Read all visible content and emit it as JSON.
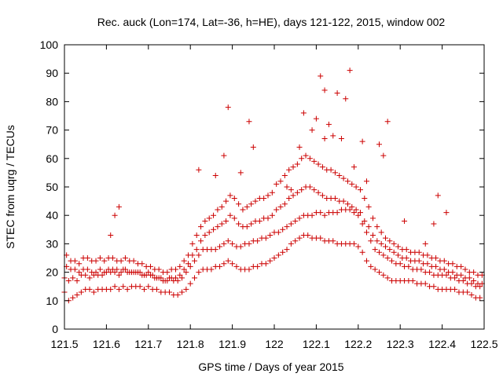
{
  "chart_data": {
    "type": "scatter",
    "title": "Rec. auck (Lon=174, Lat=-36, h=HE), days 121-122, 2015, window 002",
    "xlabel": "GPS time / Days of year 2015",
    "ylabel": "STEC from uqrg / TECUs",
    "xlim": [
      121.5,
      122.5
    ],
    "ylim": [
      0,
      100
    ],
    "xticks": [
      121.5,
      121.6,
      121.7,
      121.8,
      121.9,
      122,
      122.1,
      122.2,
      122.3,
      122.4,
      122.5
    ],
    "xtick_labels": [
      "121.5",
      "121.6",
      "121.7",
      "121.8",
      "121.9",
      "122",
      "122.1",
      "122.2",
      "122.3",
      "122.4",
      "122.5"
    ],
    "yticks": [
      0,
      10,
      20,
      30,
      40,
      50,
      60,
      70,
      80,
      90,
      100
    ],
    "ytick_labels": [
      "0",
      "10",
      "20",
      "30",
      "40",
      "50",
      "60",
      "70",
      "80",
      "90",
      "100"
    ],
    "grid": false,
    "marker": "plus",
    "color": "#cc0000",
    "series": [
      {
        "x": [
          121.5,
          121.51,
          121.52,
          121.53,
          121.54,
          121.55,
          121.56,
          121.57,
          121.58,
          121.59,
          121.6,
          121.61,
          121.62,
          121.63,
          121.64,
          121.65,
          121.66,
          121.67,
          121.68,
          121.69,
          121.7,
          121.71,
          121.72,
          121.73,
          121.74,
          121.75,
          121.76,
          121.77,
          121.78,
          121.79,
          121.8,
          121.81,
          121.82,
          121.83,
          121.84,
          121.85,
          121.86,
          121.87,
          121.88,
          121.89,
          121.9,
          121.91,
          121.92,
          121.93,
          121.94,
          121.95,
          121.96,
          121.97,
          121.98,
          121.99,
          122.0,
          122.01,
          122.02,
          122.03,
          122.04,
          122.05,
          122.06,
          122.07,
          122.08,
          122.09,
          122.1,
          122.11,
          122.12,
          122.13,
          122.14,
          122.15,
          122.16,
          122.17,
          122.18,
          122.19,
          122.2,
          122.21,
          122.22,
          122.23,
          122.24,
          122.25,
          122.26,
          122.27,
          122.28,
          122.29,
          122.3,
          122.31,
          122.32,
          122.33,
          122.34,
          122.35,
          122.36,
          122.37,
          122.38,
          122.39,
          122.4,
          122.41,
          122.42,
          122.43,
          122.44,
          122.45,
          122.46,
          122.47,
          122.48,
          122.49,
          121.5,
          121.51,
          121.52,
          121.53,
          121.54,
          121.55,
          121.56,
          121.57,
          121.58,
          121.59,
          121.6,
          121.61,
          121.62,
          121.63,
          121.64,
          121.65,
          121.66,
          121.67,
          121.68,
          121.69,
          121.7,
          121.71,
          121.72,
          121.73,
          121.74,
          121.75,
          121.76,
          121.77,
          121.78,
          121.79,
          121.8,
          121.81,
          121.82,
          121.83,
          121.84,
          121.85,
          121.86,
          121.87,
          121.88,
          121.89,
          121.9,
          121.91,
          121.92,
          121.93,
          121.94,
          121.95,
          121.96,
          121.97,
          121.98,
          121.99,
          122.0,
          122.01,
          122.02,
          122.03,
          122.04,
          122.05,
          122.06,
          122.07,
          122.08,
          122.09,
          122.1,
          122.11,
          122.12,
          122.13,
          122.14,
          122.15,
          122.16,
          122.17,
          122.18,
          122.19,
          122.2,
          122.21,
          122.22,
          122.23,
          122.24,
          122.25,
          122.26,
          122.27,
          122.28,
          122.29,
          122.3,
          122.31,
          122.32,
          122.33,
          122.34,
          122.35,
          122.36,
          122.37,
          122.38,
          122.39,
          122.4,
          122.41,
          122.42,
          122.43,
          122.44,
          122.45,
          122.46,
          122.47,
          122.48,
          122.49,
          121.505,
          121.515,
          121.525,
          121.535,
          121.545,
          121.555,
          121.565,
          121.575,
          121.585,
          121.595,
          121.605,
          121.615,
          121.625,
          121.635,
          121.645,
          121.655,
          121.665,
          121.675,
          121.685,
          121.695,
          121.705,
          121.715,
          121.725,
          121.735,
          121.745,
          121.755,
          121.765,
          121.775,
          121.785,
          121.795,
          121.805,
          121.815,
          121.825,
          121.835,
          121.845,
          121.855,
          121.865,
          121.875,
          121.885,
          121.895,
          121.905,
          121.915,
          121.925,
          121.935,
          121.945,
          121.955,
          121.965,
          121.975,
          121.985,
          121.995,
          122.005,
          122.015,
          122.025,
          122.035,
          122.045,
          122.055,
          122.065,
          122.075,
          122.085,
          122.095,
          122.105,
          122.115,
          122.125,
          122.135,
          122.145,
          122.155,
          122.165,
          122.175,
          122.185,
          122.195,
          122.205,
          122.215,
          122.225,
          122.235,
          122.245,
          122.255,
          122.265,
          122.275,
          122.285,
          122.295,
          122.305,
          122.315,
          122.325,
          122.335,
          122.345,
          122.355,
          122.365,
          122.375,
          122.385,
          122.395,
          122.405,
          122.415,
          122.425,
          122.435,
          122.445,
          122.455,
          122.465,
          122.475,
          122.485,
          122.495,
          121.505,
          121.515,
          121.525,
          121.535,
          121.545,
          121.555,
          121.565,
          121.575,
          121.585,
          121.595,
          121.605,
          121.615,
          121.625,
          121.635,
          121.645,
          121.655,
          121.665,
          121.675,
          121.685,
          121.695,
          121.705,
          121.715,
          121.725,
          121.735,
          121.745,
          121.755,
          121.765,
          121.775,
          121.785,
          121.795,
          121.805,
          121.815,
          121.825,
          121.835,
          121.845,
          121.855,
          121.865,
          121.875,
          121.885,
          121.895,
          121.905,
          121.915,
          121.925,
          121.935,
          121.945,
          121.955,
          121.965,
          121.975,
          121.985,
          121.995,
          122.005,
          122.015,
          122.025,
          122.035,
          122.045,
          122.055,
          122.065,
          122.075,
          122.085,
          122.095,
          122.105,
          122.115,
          122.125,
          122.135,
          122.145,
          122.155,
          122.165,
          122.175,
          122.185,
          122.195,
          122.205,
          122.215,
          122.225,
          122.235,
          122.245,
          122.255,
          122.265,
          122.275,
          122.285,
          122.295,
          122.305,
          122.315,
          122.325,
          122.335,
          122.345,
          122.355,
          122.365,
          122.375,
          122.385,
          122.395,
          122.405,
          122.415,
          122.425,
          122.435,
          122.445,
          122.455,
          122.465,
          122.475,
          122.485,
          122.495,
          121.61,
          121.62,
          121.63,
          121.89,
          121.94,
          121.88,
          122.11,
          122.12,
          122.13,
          122.14,
          122.18,
          122.17,
          122.21,
          122.27,
          122.06,
          122.07,
          122.1,
          122.15,
          122.16,
          122.25,
          122.39,
          122.41,
          121.82,
          121.86,
          121.92,
          121.95,
          122.03,
          122.04,
          122.09,
          122.12,
          122.19,
          122.22,
          122.26,
          122.31,
          122.36,
          122.38
        ],
        "y": [
          13,
          10,
          11,
          12,
          13,
          14,
          14,
          13,
          14,
          14,
          14,
          14,
          15,
          14,
          15,
          14,
          15,
          15,
          15,
          14,
          15,
          14,
          14,
          13,
          13,
          13,
          12,
          12,
          13,
          14,
          16,
          18,
          20,
          21,
          21,
          21,
          22,
          22,
          23,
          24,
          23,
          22,
          21,
          21,
          21,
          22,
          22,
          23,
          23,
          24,
          25,
          26,
          27,
          28,
          30,
          31,
          32,
          33,
          33,
          32,
          32,
          32,
          31,
          31,
          31,
          30,
          30,
          30,
          30,
          30,
          29,
          27,
          24,
          22,
          21,
          20,
          19,
          18,
          17,
          17,
          17,
          17,
          17,
          17,
          16,
          16,
          16,
          15,
          15,
          14,
          14,
          14,
          14,
          14,
          13,
          13,
          13,
          12,
          11,
          11,
          18,
          17,
          18,
          17,
          19,
          19,
          18,
          19,
          19,
          19,
          20,
          20,
          20,
          19,
          21,
          20,
          20,
          20,
          20,
          19,
          20,
          19,
          18,
          18,
          17,
          18,
          17,
          17,
          18,
          20,
          22,
          24,
          26,
          28,
          28,
          28,
          28,
          29,
          30,
          31,
          30,
          29,
          29,
          30,
          30,
          31,
          31,
          32,
          32,
          33,
          34,
          34,
          35,
          36,
          37,
          38,
          39,
          40,
          40,
          40,
          41,
          41,
          40,
          41,
          41,
          41,
          42,
          42,
          42,
          41,
          40,
          37,
          34,
          31,
          28,
          27,
          26,
          25,
          24,
          23,
          23,
          22,
          22,
          21,
          21,
          21,
          20,
          20,
          19,
          19,
          19,
          19,
          18,
          18,
          17,
          17,
          16,
          16,
          15,
          15,
          26,
          24,
          24,
          23,
          25,
          25,
          24,
          24,
          25,
          24,
          25,
          25,
          24,
          24,
          25,
          24,
          24,
          23,
          23,
          22,
          22,
          21,
          21,
          20,
          20,
          21,
          21,
          22,
          24,
          26,
          30,
          33,
          36,
          38,
          39,
          40,
          42,
          43,
          45,
          47,
          46,
          44,
          42,
          43,
          44,
          45,
          46,
          46,
          47,
          48,
          51,
          52,
          54,
          56,
          57,
          58,
          60,
          61,
          60,
          59,
          58,
          57,
          56,
          56,
          55,
          54,
          53,
          52,
          51,
          50,
          49,
          46,
          43,
          39,
          36,
          34,
          32,
          31,
          30,
          29,
          28,
          28,
          27,
          27,
          27,
          26,
          26,
          25,
          25,
          24,
          24,
          23,
          23,
          22,
          22,
          21,
          20,
          20,
          19,
          19,
          22,
          21,
          21,
          20,
          21,
          21,
          20,
          20,
          21,
          20,
          21,
          21,
          21,
          20,
          21,
          20,
          20,
          20,
          19,
          19,
          19,
          18,
          18,
          17,
          17,
          18,
          18,
          19,
          21,
          23,
          26,
          28,
          31,
          33,
          34,
          35,
          36,
          37,
          38,
          40,
          39,
          37,
          36,
          36,
          37,
          38,
          38,
          39,
          39,
          40,
          42,
          43,
          44,
          46,
          47,
          48,
          49,
          50,
          50,
          49,
          48,
          47,
          46,
          46,
          46,
          45,
          45,
          44,
          43,
          42,
          41,
          38,
          36,
          33,
          31,
          30,
          29,
          28,
          27,
          26,
          25,
          25,
          24,
          24,
          24,
          23,
          23,
          22,
          22,
          21,
          21,
          20,
          20,
          19,
          19,
          18,
          18,
          17,
          16,
          16,
          33,
          40,
          43,
          78,
          73,
          61,
          89,
          84,
          72,
          68,
          91,
          81,
          66,
          73,
          64,
          76,
          74,
          83,
          67,
          65,
          47,
          41,
          56,
          54,
          55,
          64,
          50,
          49,
          70,
          67,
          57,
          52,
          61,
          38,
          30,
          37
        ]
      }
    ]
  }
}
